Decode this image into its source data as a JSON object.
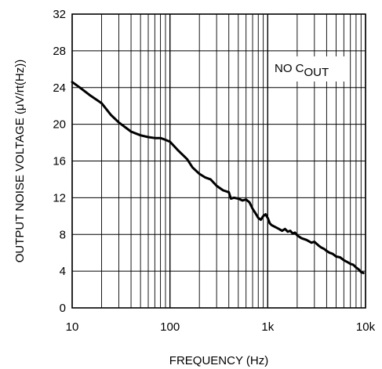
{
  "chart_data": {
    "type": "line",
    "xscale": "log",
    "xlim": [
      10,
      10000
    ],
    "ylim": [
      0,
      32
    ],
    "xlabel": "FREQUENCY (Hz)",
    "ylabel_prefix": "OUTPUT NOISE VOLTAGE (",
    "ylabel_mu": "μ",
    "ylabel_suffix": "V/rt(Hz))",
    "x_tick_labels": [
      "10",
      "100",
      "1k",
      "10k"
    ],
    "x_tick_values": [
      10,
      100,
      1000,
      10000
    ],
    "y_ticks": [
      0,
      4,
      8,
      12,
      16,
      20,
      24,
      28,
      32
    ],
    "grid": true,
    "annotation": {
      "main": "NO C",
      "sub": "OUT"
    },
    "series": [
      {
        "x": [
          10,
          12,
          15,
          20,
          25,
          30,
          40,
          50,
          60,
          70,
          80,
          90,
          100,
          120,
          150,
          170,
          200,
          230,
          260,
          300,
          350,
          400,
          420,
          450,
          500,
          550,
          600,
          650,
          700,
          750,
          800,
          850,
          900,
          950,
          1000,
          1050,
          1100,
          1200,
          1300,
          1400,
          1500,
          1600,
          1700,
          1800,
          1900,
          2000,
          2200,
          2500,
          2800,
          3000,
          3300,
          3500,
          3800,
          4000,
          4300,
          4600,
          5000,
          5500,
          6000,
          6500,
          7000,
          7500,
          8000,
          8500,
          9000,
          9500
        ],
        "y": [
          24.6,
          24.0,
          23.2,
          22.3,
          21.0,
          20.2,
          19.2,
          18.8,
          18.6,
          18.5,
          18.5,
          18.3,
          18.1,
          17.2,
          16.2,
          15.3,
          14.6,
          14.2,
          14.0,
          13.3,
          12.8,
          12.6,
          11.9,
          12.0,
          11.9,
          11.7,
          11.8,
          11.5,
          10.8,
          10.3,
          9.8,
          9.6,
          10.0,
          10.2,
          9.8,
          9.2,
          9.0,
          8.8,
          8.6,
          8.4,
          8.6,
          8.3,
          8.4,
          8.1,
          8.2,
          7.9,
          7.6,
          7.4,
          7.1,
          7.2,
          6.8,
          6.6,
          6.4,
          6.2,
          6.0,
          5.9,
          5.6,
          5.5,
          5.2,
          5.0,
          4.8,
          4.7,
          4.4,
          4.2,
          3.9,
          3.8
        ]
      }
    ]
  }
}
